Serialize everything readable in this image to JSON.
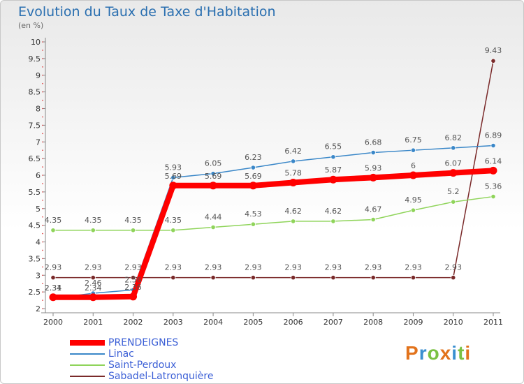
{
  "title": "Evolution du Taux de Taxe d'Habitation",
  "subtitle": "(en %)",
  "logo_text": "Proxiti",
  "chart_data": {
    "type": "line",
    "title": "Evolution du Taux de Taxe d'Habitation",
    "ylabel": "(en %)",
    "xlabel": "",
    "x": [
      "2000",
      "2001",
      "2002",
      "2003",
      "2004",
      "2005",
      "2006",
      "2007",
      "2008",
      "2009",
      "2010",
      "2011"
    ],
    "ylim": [
      2,
      10
    ],
    "yticks": [
      "2",
      "2.5",
      "3",
      "3.5",
      "4",
      "4.5",
      "5",
      "5.5",
      "6",
      "6.5",
      "7",
      "7.5",
      "8",
      "8.5",
      "9",
      "9.5",
      "10"
    ],
    "grid": false,
    "legend_position": "bottom-left",
    "series": [
      {
        "name": "PRENDEIGNES",
        "color": "#ff0000",
        "values": [
          2.34,
          2.34,
          2.36,
          5.69,
          5.69,
          5.69,
          5.78,
          5.87,
          5.93,
          6,
          6.07,
          6.14
        ],
        "labels": [
          "2.34",
          "2.34",
          "2.36",
          "5.69",
          "5.69",
          "5.69",
          "5.78",
          "5.87",
          "5.93",
          "6",
          "6.07",
          "6.14"
        ]
      },
      {
        "name": "Linac",
        "color": "#3a87c8",
        "values": [
          2.31,
          2.46,
          2.56,
          5.93,
          6.05,
          6.23,
          6.42,
          6.55,
          6.68,
          6.75,
          6.82,
          6.89
        ],
        "labels": [
          "2.31",
          "2.46",
          "2.56",
          "5.93",
          "6.05",
          "6.23",
          "6.42",
          "6.55",
          "6.68",
          "6.75",
          "6.82",
          "6.89"
        ]
      },
      {
        "name": "Saint-Perdoux",
        "color": "#8fd45a",
        "values": [
          4.35,
          4.35,
          4.35,
          4.35,
          4.44,
          4.53,
          4.62,
          4.62,
          4.67,
          4.95,
          5.2,
          5.36
        ],
        "labels": [
          "4.35",
          "4.35",
          "4.35",
          "4.35",
          "4.44",
          "4.53",
          "4.62",
          "4.62",
          "4.67",
          "4.95",
          "5.2",
          "5.36"
        ]
      },
      {
        "name": "Sabadel-Latronquière",
        "color": "#7a2a2a",
        "values": [
          2.93,
          2.93,
          2.93,
          2.93,
          2.93,
          2.93,
          2.93,
          2.93,
          2.93,
          2.93,
          2.93,
          9.43
        ],
        "labels": [
          "2.93",
          "2.93",
          "2.93",
          "2.93",
          "2.93",
          "2.93",
          "2.93",
          "2.93",
          "2.93",
          "2.93",
          "2.93",
          "9.43"
        ]
      }
    ]
  }
}
